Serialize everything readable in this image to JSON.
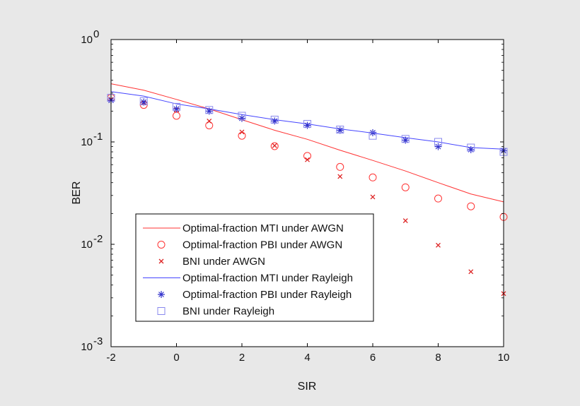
{
  "chart_data": {
    "type": "line",
    "xlabel": "SIR",
    "ylabel": "BER",
    "xlim": [
      -2,
      10
    ],
    "ylim": [
      0.001,
      1
    ],
    "yscale": "log",
    "grid": false,
    "legend_position": "bottom-left",
    "x_ticks": [
      "-2",
      "0",
      "2",
      "4",
      "6",
      "8",
      "10"
    ],
    "y_ticks": [
      {
        "base": "10",
        "exp": "0",
        "value": 1
      },
      {
        "base": "10",
        "exp": "-1",
        "value": 0.1
      },
      {
        "base": "10",
        "exp": "-2",
        "value": 0.01
      },
      {
        "base": "10",
        "exp": "-3",
        "value": 0.001
      }
    ],
    "series": [
      {
        "name": "Optimal-fraction MTI under AWGN",
        "style": "line",
        "marker": "none",
        "color": "#ff3333",
        "x": [
          -2,
          -1,
          0,
          1,
          2,
          3,
          4,
          5,
          6,
          7,
          8,
          9,
          10
        ],
        "y": [
          0.37,
          0.32,
          0.26,
          0.21,
          0.165,
          0.13,
          0.106,
          0.083,
          0.066,
          0.052,
          0.04,
          0.031,
          0.026
        ]
      },
      {
        "name": "Optimal-fraction PBI under AWGN",
        "style": "markers",
        "marker": "circle",
        "color": "#ff3333",
        "x": [
          -2,
          -1,
          0,
          1,
          2,
          3,
          4,
          5,
          6,
          7,
          8,
          9,
          10
        ],
        "y": [
          0.27,
          0.23,
          0.18,
          0.145,
          0.115,
          0.091,
          0.073,
          0.057,
          0.045,
          0.036,
          0.028,
          0.0235,
          0.0185
        ]
      },
      {
        "name": "BNI under AWGN",
        "style": "markers",
        "marker": "x",
        "color": "#dd2222",
        "x": [
          -2,
          -1,
          0,
          1,
          2,
          3,
          4,
          5,
          6,
          7,
          8,
          9,
          10
        ],
        "y": [
          0.26,
          0.24,
          0.205,
          0.16,
          0.125,
          0.092,
          0.067,
          0.046,
          0.029,
          0.017,
          0.0098,
          0.0054,
          0.0033
        ]
      },
      {
        "name": "Optimal-fraction MTI under Rayleigh",
        "style": "line",
        "marker": "none",
        "color": "#4444ff",
        "x": [
          -2,
          -1,
          0,
          1,
          2,
          3,
          4,
          5,
          6,
          7,
          8,
          9,
          10
        ],
        "y": [
          0.31,
          0.28,
          0.235,
          0.21,
          0.185,
          0.165,
          0.15,
          0.134,
          0.122,
          0.11,
          0.1,
          0.088,
          0.085
        ]
      },
      {
        "name": "Optimal-fraction PBI under Rayleigh",
        "style": "markers",
        "marker": "star",
        "color": "#3333cc",
        "x": [
          -2,
          -1,
          0,
          1,
          2,
          3,
          4,
          5,
          6,
          7,
          8,
          9,
          10
        ],
        "y": [
          0.255,
          0.245,
          0.21,
          0.2,
          0.17,
          0.16,
          0.145,
          0.13,
          0.123,
          0.104,
          0.09,
          0.084,
          0.082
        ]
      },
      {
        "name": "BNI under Rayleigh",
        "style": "markers",
        "marker": "square",
        "color": "#8888ee",
        "x": [
          -2,
          -1,
          0,
          1,
          2,
          3,
          4,
          5,
          6,
          7,
          8,
          9,
          10
        ],
        "y": [
          0.27,
          0.25,
          0.22,
          0.205,
          0.18,
          0.165,
          0.15,
          0.132,
          0.115,
          0.107,
          0.1,
          0.088,
          0.08
        ]
      }
    ]
  }
}
